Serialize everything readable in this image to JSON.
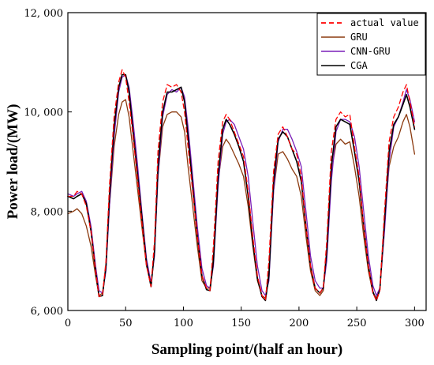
{
  "chart_data": {
    "type": "line",
    "title": "",
    "xlabel": "Sampling point/(half an hour)",
    "ylabel": "Power load/(MW)",
    "xlim": [
      0,
      310
    ],
    "ylim": [
      6000,
      12000
    ],
    "xticks": [
      0,
      50,
      100,
      150,
      200,
      250,
      300
    ],
    "yticks": [
      6000,
      8000,
      10000,
      12000
    ],
    "xtick_labels": [
      "0",
      "50",
      "100",
      "150",
      "200",
      "250",
      "300"
    ],
    "ytick_labels": [
      "6, 000",
      "8, 000",
      "10, 000",
      "12, 000"
    ],
    "grid": false,
    "legend_position": "top-right",
    "series": [
      {
        "name": "actual value",
        "color": "#ff0000",
        "style": "dashed",
        "x": [
          0,
          5,
          8,
          12,
          16,
          20,
          24,
          27,
          30,
          33,
          36,
          40,
          44,
          47,
          50,
          53,
          56,
          60,
          64,
          68,
          72,
          75,
          78,
          82,
          86,
          90,
          94,
          98,
          101,
          104,
          108,
          112,
          116,
          120,
          123,
          126,
          130,
          134,
          137,
          140,
          144,
          148,
          152,
          156,
          160,
          164,
          168,
          171,
          174,
          178,
          182,
          186,
          190,
          194,
          198,
          202,
          206,
          210,
          214,
          218,
          221,
          224,
          228,
          232,
          236,
          240,
          244,
          248,
          252,
          256,
          260,
          264,
          267,
          270,
          274,
          278,
          282,
          286,
          290,
          293,
          296,
          300
        ],
        "y": [
          8300,
          8300,
          8400,
          8350,
          8100,
          7600,
          6800,
          6280,
          6300,
          7000,
          8500,
          9900,
          10600,
          10850,
          10700,
          10200,
          9600,
          8700,
          7800,
          6900,
          6480,
          7400,
          9200,
          10200,
          10550,
          10500,
          10550,
          10400,
          10000,
          9300,
          8400,
          7500,
          6700,
          6450,
          6400,
          7300,
          9000,
          9800,
          9950,
          9850,
          9600,
          9350,
          9100,
          8400,
          7500,
          6700,
          6300,
          6200,
          7000,
          8800,
          9550,
          9700,
          9500,
          9250,
          9150,
          8700,
          7700,
          6900,
          6450,
          6350,
          6450,
          7400,
          9200,
          9850,
          10000,
          9900,
          9950,
          9300,
          8700,
          7700,
          6900,
          6350,
          6200,
          6400,
          8000,
          9400,
          9900,
          10100,
          10400,
          10550,
          10200,
          9700
        ]
      },
      {
        "name": "GRU",
        "color": "#8b3a0f",
        "style": "solid",
        "x": [
          0,
          5,
          8,
          12,
          16,
          20,
          24,
          27,
          30,
          33,
          36,
          40,
          44,
          47,
          50,
          53,
          56,
          60,
          64,
          68,
          72,
          75,
          78,
          82,
          86,
          90,
          94,
          98,
          101,
          104,
          108,
          112,
          116,
          120,
          123,
          126,
          130,
          134,
          137,
          140,
          144,
          148,
          152,
          156,
          160,
          164,
          168,
          171,
          174,
          178,
          182,
          186,
          190,
          194,
          198,
          202,
          206,
          210,
          214,
          218,
          221,
          224,
          228,
          232,
          236,
          240,
          244,
          248,
          252,
          256,
          260,
          264,
          267,
          270,
          274,
          278,
          282,
          286,
          290,
          293,
          296,
          300
        ],
        "y": [
          7950,
          8000,
          8050,
          7950,
          7700,
          7300,
          6700,
          6300,
          6350,
          6900,
          8100,
          9300,
          9950,
          10200,
          10250,
          9900,
          9300,
          8500,
          7700,
          6900,
          6550,
          7200,
          8700,
          9700,
          9950,
          10000,
          10000,
          9900,
          9600,
          8900,
          8100,
          7300,
          6600,
          6450,
          6450,
          7100,
          8600,
          9300,
          9450,
          9350,
          9150,
          8950,
          8700,
          8100,
          7300,
          6600,
          6300,
          6250,
          6800,
          8400,
          9150,
          9200,
          9050,
          8850,
          8700,
          8300,
          7500,
          6800,
          6400,
          6300,
          6400,
          7200,
          8800,
          9350,
          9450,
          9350,
          9400,
          8900,
          8300,
          7500,
          6800,
          6350,
          6250,
          6450,
          7800,
          8900,
          9300,
          9500,
          9800,
          9950,
          9700,
          9150
        ]
      },
      {
        "name": "CNN-GRU",
        "color": "#7a1fb8",
        "style": "solid",
        "x": [
          0,
          5,
          8,
          12,
          16,
          20,
          24,
          27,
          30,
          33,
          36,
          40,
          44,
          47,
          50,
          53,
          56,
          60,
          64,
          68,
          72,
          75,
          78,
          82,
          86,
          90,
          94,
          98,
          101,
          104,
          108,
          112,
          116,
          120,
          123,
          126,
          130,
          134,
          137,
          140,
          144,
          148,
          152,
          156,
          160,
          164,
          168,
          171,
          174,
          178,
          182,
          186,
          190,
          194,
          198,
          202,
          206,
          210,
          214,
          218,
          221,
          224,
          228,
          232,
          236,
          240,
          244,
          248,
          252,
          256,
          260,
          264,
          267,
          270,
          274,
          278,
          282,
          286,
          290,
          293,
          296,
          300
        ],
        "y": [
          8350,
          8300,
          8350,
          8400,
          8200,
          7700,
          6900,
          6400,
          6350,
          6800,
          8100,
          9500,
          10400,
          10700,
          10750,
          10500,
          9900,
          9000,
          8000,
          7050,
          6550,
          7100,
          8700,
          9900,
          10350,
          10450,
          10400,
          10500,
          10300,
          9700,
          8700,
          7700,
          6850,
          6500,
          6450,
          6900,
          8500,
          9550,
          9800,
          9850,
          9750,
          9500,
          9250,
          8700,
          7800,
          6900,
          6400,
          6300,
          6600,
          8400,
          9400,
          9650,
          9650,
          9450,
          9200,
          8900,
          8000,
          7100,
          6600,
          6450,
          6450,
          7000,
          8600,
          9600,
          9850,
          9850,
          9800,
          9500,
          8900,
          8000,
          7100,
          6500,
          6300,
          6450,
          7600,
          9000,
          9700,
          9900,
          10200,
          10450,
          10250,
          9800
        ]
      },
      {
        "name": "CGA",
        "color": "#000000",
        "style": "solid",
        "x": [
          0,
          5,
          8,
          12,
          16,
          20,
          24,
          27,
          30,
          33,
          36,
          40,
          44,
          47,
          50,
          53,
          56,
          60,
          64,
          68,
          72,
          75,
          78,
          82,
          86,
          90,
          94,
          98,
          101,
          104,
          108,
          112,
          116,
          120,
          123,
          126,
          130,
          134,
          137,
          140,
          144,
          148,
          152,
          156,
          160,
          164,
          168,
          171,
          174,
          178,
          182,
          186,
          190,
          194,
          198,
          202,
          206,
          210,
          214,
          218,
          221,
          224,
          228,
          232,
          236,
          240,
          244,
          248,
          252,
          256,
          260,
          264,
          267,
          270,
          274,
          278,
          282,
          286,
          290,
          293,
          296,
          300
        ],
        "y": [
          8300,
          8250,
          8300,
          8350,
          8150,
          7600,
          6800,
          6280,
          6300,
          6900,
          8300,
          9700,
          10500,
          10750,
          10750,
          10400,
          9700,
          8800,
          7900,
          6950,
          6480,
          7200,
          8900,
          10000,
          10400,
          10400,
          10450,
          10500,
          10200,
          9500,
          8500,
          7500,
          6700,
          6420,
          6400,
          7000,
          8700,
          9650,
          9850,
          9750,
          9550,
          9300,
          9000,
          8300,
          7400,
          6650,
          6280,
          6200,
          6700,
          8600,
          9450,
          9600,
          9500,
          9250,
          9000,
          8600,
          7700,
          6900,
          6450,
          6350,
          6450,
          7200,
          8900,
          9700,
          9850,
          9800,
          9750,
          9200,
          8600,
          7700,
          6900,
          6380,
          6200,
          6420,
          7800,
          9200,
          9750,
          9900,
          10150,
          10350,
          10100,
          9650
        ]
      }
    ]
  }
}
